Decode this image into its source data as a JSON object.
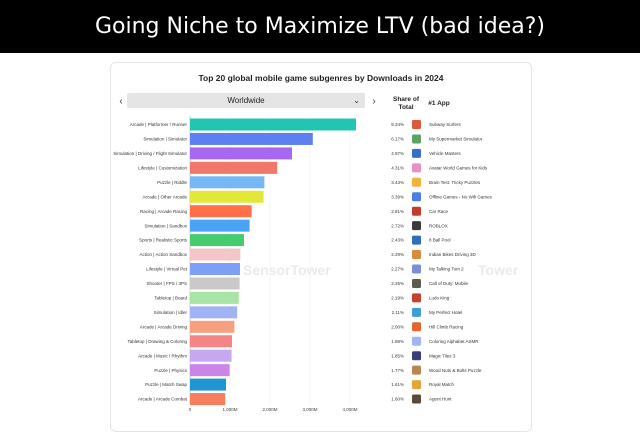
{
  "slide_title": "Going Niche to Maximize LTV (bad idea?)",
  "dropdown": {
    "selected": "Worldwide",
    "prev_icon": "‹",
    "next_icon": "›",
    "chevron": "⌄"
  },
  "columns": {
    "share": "Share of Total",
    "app": "#1 App"
  },
  "watermark": {
    "left": "SensorTower",
    "right": "Tower"
  },
  "chart_data": {
    "type": "bar",
    "orientation": "horizontal",
    "title": "Top 20 global mobile game subgenres by Downloads in 2024",
    "xlim": [
      0,
      4200000000
    ],
    "xticks": [
      0,
      1000000000,
      2000000000,
      3000000000,
      4000000000
    ],
    "xtick_labels": [
      "0",
      "1,000M",
      "2,000M",
      "3,000M",
      "4,000M"
    ],
    "categories": [
      "Arcade | Platformer / Runner",
      "Simulation | Simulator",
      "Simulation | Driving / Flight Simulator",
      "Lifestyle | Customization",
      "Puzzle | Riddle",
      "Arcade | Other Arcade",
      "Racing | Arcade Racing",
      "Simulation | Sandbox",
      "Sports | Realistic Sports",
      "Action | Action Sandbox",
      "Lifestyle | Virtual Pet",
      "Shooter | FPS / 3PS",
      "Tabletop | Board",
      "Simulation | Idler",
      "Arcade | Arcade Driving",
      "Tabletop | Drawing & Coloring",
      "Arcade | Music / Rhythm",
      "Puzzle | Physics",
      "Puzzle | Match Swap",
      "Arcade | Arcade Combat"
    ],
    "values": [
      4150000000,
      3070000000,
      2550000000,
      2180000000,
      1860000000,
      1840000000,
      1540000000,
      1490000000,
      1350000000,
      1260000000,
      1250000000,
      1240000000,
      1220000000,
      1180000000,
      1110000000,
      1050000000,
      1040000000,
      990000000,
      900000000,
      880000000
    ],
    "colors": [
      "#23c4b2",
      "#5d7ff0",
      "#a867f0",
      "#f1776b",
      "#76b8f5",
      "#e2e838",
      "#ff7048",
      "#4aa4f6",
      "#45cc6e",
      "#f5c6c6",
      "#7e9ff5",
      "#c9c9c9",
      "#a8e4a4",
      "#9fb3f5",
      "#f89f7e",
      "#f58585",
      "#c7a8f0",
      "#cd84e8",
      "#1f96d3",
      "#f67d5e"
    ],
    "share": [
      "8.34%",
      "6.17%",
      "4.97%",
      "4.31%",
      "3.43%",
      "3.39%",
      "2.81%",
      "2.72%",
      "2.43%",
      "2.29%",
      "2.27%",
      "2.25%",
      "2.19%",
      "2.11%",
      "2.00%",
      "1.88%",
      "1.85%",
      "1.77%",
      "1.61%",
      "1.60%"
    ],
    "top_app": [
      "Subway Surfers",
      "My Supermarket Simulator",
      "Vehicle Masters",
      "Avatar World Games for Kids",
      "Brain Test: Tricky Puzzles",
      "Offline Games - No Wifi Games",
      "Car Race",
      "ROBLOX",
      "8 Ball Pool",
      "Indian Bikes Driving 3D",
      "My Talking Tom 2",
      "Call of Duty: Mobile",
      "Ludo King",
      "My Perfect Hotel",
      "Hill Climb Racing",
      "Coloring Alphabet ASMR",
      "Magic Tiles 3",
      "Wood Nuts & Bolts Puzzle",
      "Royal Match",
      "Agent Hunt"
    ],
    "app_icon_colors": [
      "#e0583b",
      "#5ba35f",
      "#3a6ec9",
      "#e890c8",
      "#f2b33d",
      "#4c7ee8",
      "#c43b2e",
      "#3b3b3b",
      "#2d6fb8",
      "#d98a3a",
      "#7a8fd6",
      "#5b5b4e",
      "#c4402f",
      "#3e9fd6",
      "#e4662b",
      "#9fb7ee",
      "#3c3c7a",
      "#b98552",
      "#e2a735",
      "#5a4a3a"
    ]
  }
}
